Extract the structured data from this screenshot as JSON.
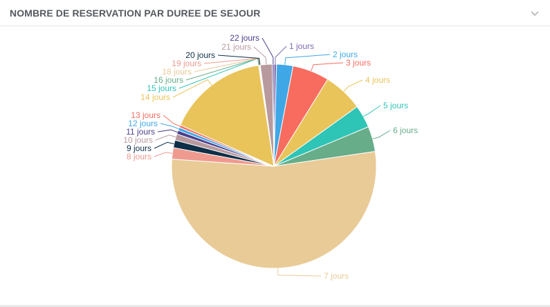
{
  "panel": {
    "title": "NOMBRE DE RESERVATION PAR DUREE DE SEJOUR",
    "collapse_icon": "chevron-down-icon"
  },
  "chart_data": {
    "type": "pie",
    "title": "NOMBRE DE RESERVATION PAR DUREE DE SEJOUR",
    "slices": [
      {
        "label": "1 jours",
        "value": 0.4,
        "color": "#7e6bb0"
      },
      {
        "label": "2 jours",
        "value": 2.6,
        "color": "#3fa7e6"
      },
      {
        "label": "3 jours",
        "value": 5.8,
        "color": "#f76c5e"
      },
      {
        "label": "4 jours",
        "value": 6.3,
        "color": "#e9c45a"
      },
      {
        "label": "5 jours",
        "value": 3.6,
        "color": "#2ec4b6"
      },
      {
        "label": "6 jours",
        "value": 4.0,
        "color": "#67ad8a"
      },
      {
        "label": "7 jours",
        "value": 53.5,
        "color": "#e9cb97"
      },
      {
        "label": "8 jours",
        "value": 1.8,
        "color": "#ef9a8f"
      },
      {
        "label": "9 jours",
        "value": 1.2,
        "color": "#0d2f47"
      },
      {
        "label": "10 jours",
        "value": 1.0,
        "color": "#b89a9e"
      },
      {
        "label": "11 jours",
        "value": 0.6,
        "color": "#4b3f8c"
      },
      {
        "label": "12 jours",
        "value": 0.5,
        "color": "#3fa7e6"
      },
      {
        "label": "13 jours",
        "value": 0.4,
        "color": "#f76c5e"
      },
      {
        "label": "14 jours",
        "value": 16.0,
        "color": "#e9c45a"
      },
      {
        "label": "15 jours",
        "value": 0.05,
        "color": "#2ec4b6"
      },
      {
        "label": "16 jours",
        "value": 0.05,
        "color": "#67ad8a"
      },
      {
        "label": "18 jours",
        "value": 0.05,
        "color": "#e9cb97"
      },
      {
        "label": "19 jours",
        "value": 0.05,
        "color": "#ef9a8f"
      },
      {
        "label": "20 jours",
        "value": 0.05,
        "color": "#0d2f47"
      },
      {
        "label": "21 jours",
        "value": 1.9,
        "color": "#b89a9e"
      },
      {
        "label": "22 jours",
        "value": 0.25,
        "color": "#4b3f8c"
      }
    ],
    "legend": "none"
  }
}
